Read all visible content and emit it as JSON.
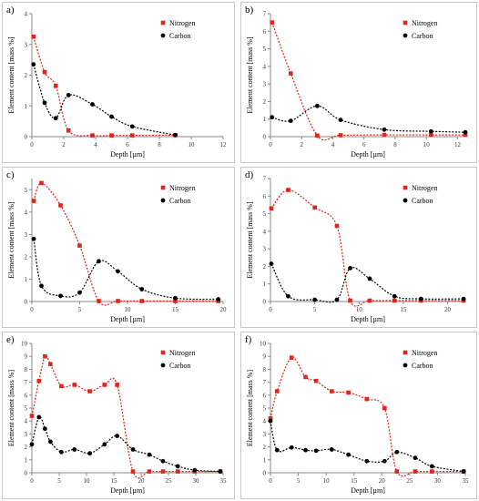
{
  "chart_data": [
    {
      "label": "a)",
      "type": "scatter",
      "xlabel": "Depth [µm]",
      "ylabel": "Element content [mass %]",
      "xlim": [
        0,
        12
      ],
      "ylim": [
        0,
        4
      ],
      "xticks": [
        0,
        2,
        4,
        6,
        8,
        10,
        12
      ],
      "yticks": [
        0,
        1,
        2,
        3,
        4
      ],
      "legend_position": "top-right",
      "series": [
        {
          "name": "Nitrogen",
          "color": "#e3231c",
          "marker": "square",
          "x": [
            0.1,
            0.8,
            1.5,
            2.3,
            3.8,
            5.0,
            6.3,
            9.0
          ],
          "y": [
            3.25,
            2.1,
            1.65,
            0.2,
            0.04,
            0.04,
            0.04,
            0.05
          ]
        },
        {
          "name": "Carbon",
          "color": "#000000",
          "marker": "circle",
          "x": [
            0.1,
            0.8,
            1.5,
            2.3,
            3.8,
            5.0,
            6.3,
            9.0
          ],
          "y": [
            2.35,
            1.1,
            0.6,
            1.35,
            1.05,
            0.65,
            0.33,
            0.05
          ]
        }
      ]
    },
    {
      "label": "b)",
      "type": "scatter",
      "xlabel": "Depth [µm]",
      "ylabel": "Element content [mass %]",
      "xlim": [
        0,
        12.5
      ],
      "ylim": [
        0,
        7
      ],
      "xticks": [
        0,
        2,
        4,
        6,
        8,
        10,
        12
      ],
      "yticks": [
        0,
        1,
        2,
        3,
        4,
        5,
        6,
        7
      ],
      "legend_position": "top-right",
      "series": [
        {
          "name": "Nitrogen",
          "color": "#e3231c",
          "marker": "square",
          "x": [
            0.1,
            1.3,
            3.0,
            4.5,
            7.3,
            10.3,
            12.5
          ],
          "y": [
            6.5,
            3.6,
            0.06,
            0.08,
            0.1,
            0.1,
            0.1
          ]
        },
        {
          "name": "Carbon",
          "color": "#000000",
          "marker": "circle",
          "x": [
            0.1,
            1.3,
            3.0,
            4.5,
            7.3,
            10.3,
            12.5
          ],
          "y": [
            1.1,
            0.9,
            1.75,
            0.95,
            0.4,
            0.3,
            0.25
          ]
        }
      ]
    },
    {
      "label": "c)",
      "type": "scatter",
      "xlabel": "Depth [µm]",
      "ylabel": "Element content [mass %]",
      "xlim": [
        0,
        20
      ],
      "ylim": [
        0,
        5.5
      ],
      "xticks": [
        0,
        5,
        10,
        15,
        20
      ],
      "yticks": [
        0,
        1,
        2,
        3,
        4,
        5
      ],
      "legend_position": "top-right",
      "series": [
        {
          "name": "Nitrogen",
          "color": "#e3231c",
          "marker": "square",
          "x": [
            0.2,
            1.0,
            3.0,
            5.0,
            7.0,
            9.0,
            11.5,
            15.0,
            19.5
          ],
          "y": [
            4.5,
            5.3,
            4.3,
            2.5,
            0.02,
            0.02,
            0.02,
            0.02,
            0.02
          ]
        },
        {
          "name": "Carbon",
          "color": "#000000",
          "marker": "circle",
          "x": [
            0.2,
            1.0,
            3.0,
            5.0,
            7.0,
            9.0,
            11.5,
            15.0,
            19.5
          ],
          "y": [
            2.8,
            0.7,
            0.25,
            0.4,
            1.8,
            1.35,
            0.55,
            0.15,
            0.1
          ]
        }
      ]
    },
    {
      "label": "d)",
      "type": "scatter",
      "xlabel": "Depth [µm]",
      "ylabel": "Element content [mass %]",
      "xlim": [
        0,
        22
      ],
      "ylim": [
        0,
        7
      ],
      "xticks": [
        0,
        5,
        10,
        15,
        20
      ],
      "yticks": [
        0,
        1,
        2,
        3,
        4,
        5,
        6,
        7
      ],
      "legend_position": "top-right",
      "series": [
        {
          "name": "Nitrogen",
          "color": "#e3231c",
          "marker": "square",
          "x": [
            0.1,
            2.0,
            5.0,
            7.5,
            9.0,
            11.2,
            14.0,
            17.0,
            21.8
          ],
          "y": [
            5.3,
            6.35,
            5.35,
            4.3,
            0.05,
            0.05,
            0.05,
            0.05,
            0.05
          ]
        },
        {
          "name": "Carbon",
          "color": "#000000",
          "marker": "circle",
          "x": [
            0.1,
            2.0,
            5.0,
            7.5,
            9.0,
            11.2,
            14.0,
            17.0,
            21.8
          ],
          "y": [
            2.15,
            0.3,
            0.1,
            0.1,
            1.9,
            1.3,
            0.3,
            0.15,
            0.15
          ]
        }
      ]
    },
    {
      "label": "e)",
      "type": "scatter",
      "xlabel": "Depth [µm]",
      "ylabel": "Element content [mass %]",
      "xlim": [
        0,
        35
      ],
      "ylim": [
        0,
        10
      ],
      "xticks": [
        0,
        5,
        10,
        15,
        20,
        25,
        30,
        35
      ],
      "yticks": [
        0,
        1,
        2,
        3,
        4,
        5,
        6,
        7,
        8,
        9,
        10
      ],
      "legend_position": "top-right",
      "series": [
        {
          "name": "Nitrogen",
          "color": "#e3231c",
          "marker": "square",
          "x": [
            0.0,
            1.3,
            2.4,
            3.4,
            5.4,
            7.8,
            10.6,
            13.3,
            15.6,
            18.5,
            21.5,
            24.0,
            26.7,
            29.8,
            34.5
          ],
          "y": [
            4.4,
            7.1,
            9.0,
            8.4,
            6.7,
            6.8,
            6.3,
            6.8,
            6.8,
            0.1,
            0.1,
            0.1,
            0.1,
            0.1,
            0.1
          ]
        },
        {
          "name": "Carbon",
          "color": "#000000",
          "marker": "circle",
          "x": [
            0.0,
            1.3,
            2.4,
            3.4,
            5.4,
            7.8,
            10.6,
            13.3,
            15.6,
            18.5,
            21.5,
            24.0,
            26.7,
            29.8,
            34.5
          ],
          "y": [
            2.2,
            4.3,
            3.4,
            2.4,
            1.6,
            1.8,
            1.5,
            2.2,
            2.85,
            1.8,
            1.4,
            0.9,
            0.5,
            0.2,
            0.1
          ]
        }
      ]
    },
    {
      "label": "f)",
      "type": "scatter",
      "xlabel": "Depth [µm]",
      "ylabel": "Element content [mass %]",
      "xlim": [
        0,
        35
      ],
      "ylim": [
        0,
        10
      ],
      "xticks": [
        0,
        5,
        10,
        15,
        20,
        25,
        30,
        35
      ],
      "yticks": [
        0,
        1,
        2,
        3,
        4,
        5,
        6,
        7,
        8,
        9,
        10
      ],
      "legend_position": "top-right",
      "series": [
        {
          "name": "Nitrogen",
          "color": "#e3231c",
          "marker": "square",
          "x": [
            0.0,
            1.2,
            3.8,
            6.3,
            8.2,
            11.0,
            14.0,
            17.3,
            20.5,
            22.7,
            26.0,
            29.0,
            34.7
          ],
          "y": [
            4.2,
            6.3,
            8.9,
            7.4,
            7.1,
            6.3,
            6.2,
            5.7,
            5.0,
            0.1,
            0.1,
            0.1,
            0.1
          ]
        },
        {
          "name": "Carbon",
          "color": "#000000",
          "marker": "circle",
          "x": [
            0.0,
            1.2,
            3.8,
            6.3,
            8.2,
            11.0,
            14.0,
            17.3,
            20.5,
            22.7,
            26.0,
            29.0,
            34.7
          ],
          "y": [
            4.0,
            1.75,
            1.95,
            1.75,
            1.7,
            1.8,
            1.4,
            0.9,
            0.9,
            1.6,
            1.15,
            0.5,
            0.1
          ]
        }
      ]
    }
  ]
}
